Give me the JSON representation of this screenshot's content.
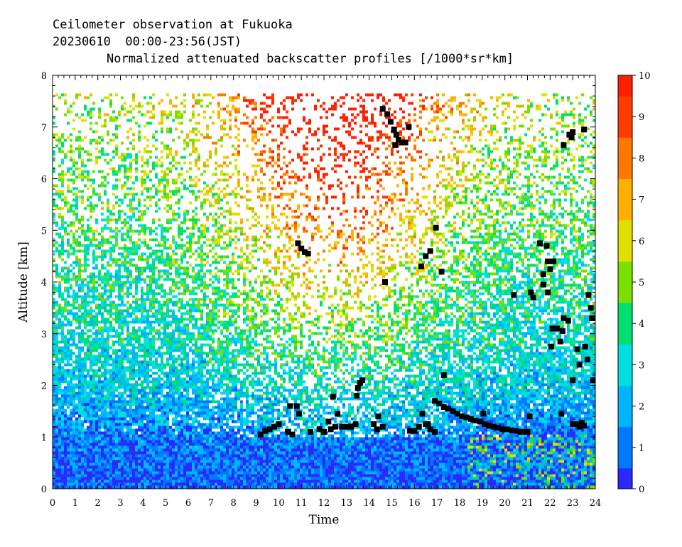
{
  "header": {
    "line1": "Ceilometer observation at Fukuoka",
    "line2": "20230610  00:00-23:56(JST)",
    "line3": "Normalized attenuated backscatter profiles [/1000*sr*km]"
  },
  "chart_data": {
    "type": "heatmap",
    "xlabel": "Time",
    "ylabel": "Altitude [km]",
    "xlim": [
      0,
      24
    ],
    "ylim": [
      0,
      8
    ],
    "x_ticks": [
      0,
      1,
      2,
      3,
      4,
      5,
      6,
      7,
      8,
      9,
      10,
      11,
      12,
      13,
      14,
      15,
      16,
      17,
      18,
      19,
      20,
      21,
      22,
      23,
      24
    ],
    "y_ticks": [
      0,
      1,
      2,
      3,
      4,
      5,
      6,
      7,
      8
    ],
    "colorbar": {
      "range": [
        0,
        10
      ],
      "ticks": [
        0,
        1,
        2,
        3,
        4,
        5,
        6,
        7,
        8,
        9,
        10
      ],
      "colors": [
        "#2a2aff",
        "#0078ff",
        "#00b4ff",
        "#00e0e0",
        "#00e070",
        "#7ae000",
        "#e0e000",
        "#ffb000",
        "#ff7800",
        "#ff3c00",
        "#ff2000"
      ]
    },
    "data_top_km": 7.65,
    "cloud_base_points": [
      [
        9.2,
        1.05
      ],
      [
        9.4,
        1.12
      ],
      [
        9.6,
        1.15
      ],
      [
        9.8,
        1.2
      ],
      [
        10.0,
        1.25
      ],
      [
        10.4,
        1.1
      ],
      [
        10.6,
        1.05
      ],
      [
        10.5,
        1.6
      ],
      [
        10.8,
        1.6
      ],
      [
        10.9,
        1.45
      ],
      [
        10.85,
        4.75
      ],
      [
        11.0,
        4.65
      ],
      [
        11.15,
        4.58
      ],
      [
        11.3,
        4.55
      ],
      [
        11.4,
        1.1
      ],
      [
        11.8,
        1.15
      ],
      [
        12.0,
        1.1
      ],
      [
        12.2,
        1.3
      ],
      [
        12.3,
        1.15
      ],
      [
        12.5,
        1.2
      ],
      [
        12.4,
        1.78
      ],
      [
        12.6,
        1.45
      ],
      [
        12.8,
        1.2
      ],
      [
        13.0,
        1.2
      ],
      [
        13.2,
        1.2
      ],
      [
        13.4,
        1.25
      ],
      [
        13.5,
        1.95
      ],
      [
        13.6,
        2.05
      ],
      [
        13.7,
        2.1
      ],
      [
        13.45,
        1.8
      ],
      [
        14.2,
        1.25
      ],
      [
        14.35,
        1.15
      ],
      [
        14.6,
        1.2
      ],
      [
        14.4,
        1.4
      ],
      [
        14.7,
        4.0
      ],
      [
        14.6,
        7.35
      ],
      [
        14.8,
        7.25
      ],
      [
        14.95,
        7.1
      ],
      [
        15.1,
        6.95
      ],
      [
        15.2,
        6.85
      ],
      [
        15.3,
        6.75
      ],
      [
        15.15,
        6.65
      ],
      [
        15.45,
        6.7
      ],
      [
        15.6,
        6.7
      ],
      [
        15.75,
        7.0
      ],
      [
        15.8,
        1.12
      ],
      [
        16.0,
        1.12
      ],
      [
        16.2,
        1.2
      ],
      [
        16.35,
        1.45
      ],
      [
        16.5,
        1.25
      ],
      [
        16.7,
        1.15
      ],
      [
        16.9,
        1.1
      ],
      [
        16.6,
        1.25
      ],
      [
        16.3,
        4.3
      ],
      [
        16.5,
        4.5
      ],
      [
        16.7,
        4.6
      ],
      [
        16.95,
        5.05
      ],
      [
        17.2,
        4.2
      ],
      [
        17.3,
        2.2
      ],
      [
        16.9,
        1.7
      ],
      [
        17.1,
        1.65
      ],
      [
        17.3,
        1.58
      ],
      [
        17.5,
        1.55
      ],
      [
        17.7,
        1.5
      ],
      [
        17.9,
        1.45
      ],
      [
        18.1,
        1.4
      ],
      [
        18.3,
        1.38
      ],
      [
        18.5,
        1.35
      ],
      [
        18.7,
        1.32
      ],
      [
        18.9,
        1.3
      ],
      [
        19.1,
        1.25
      ],
      [
        19.3,
        1.22
      ],
      [
        19.5,
        1.2
      ],
      [
        19.7,
        1.18
      ],
      [
        19.9,
        1.15
      ],
      [
        20.1,
        1.15
      ],
      [
        20.3,
        1.13
      ],
      [
        20.5,
        1.12
      ],
      [
        20.7,
        1.1
      ],
      [
        20.9,
        1.1
      ],
      [
        21.0,
        1.1
      ],
      [
        19.05,
        1.45
      ],
      [
        20.4,
        3.75
      ],
      [
        21.1,
        1.4
      ],
      [
        21.15,
        3.8
      ],
      [
        21.25,
        3.7
      ],
      [
        21.55,
        4.75
      ],
      [
        21.7,
        4.15
      ],
      [
        21.85,
        4.7
      ],
      [
        21.9,
        4.4
      ],
      [
        22.0,
        4.25
      ],
      [
        22.15,
        4.4
      ],
      [
        21.9,
        3.8
      ],
      [
        21.7,
        3.95
      ],
      [
        22.05,
        2.75
      ],
      [
        22.1,
        3.1
      ],
      [
        22.3,
        3.1
      ],
      [
        22.45,
        2.85
      ],
      [
        22.6,
        3.3
      ],
      [
        22.8,
        3.25
      ],
      [
        22.5,
        1.45
      ],
      [
        22.55,
        3.05
      ],
      [
        22.6,
        6.65
      ],
      [
        22.85,
        6.85
      ],
      [
        23.0,
        6.9
      ],
      [
        22.95,
        6.8
      ],
      [
        23.5,
        6.95
      ],
      [
        23.0,
        2.1
      ],
      [
        23.2,
        2.7
      ],
      [
        23.3,
        2.4
      ],
      [
        23.55,
        2.75
      ],
      [
        23.65,
        2.5
      ],
      [
        23.7,
        3.75
      ],
      [
        23.8,
        3.5
      ],
      [
        23.85,
        3.3
      ],
      [
        23.9,
        2.1
      ],
      [
        23.0,
        1.25
      ],
      [
        23.2,
        1.25
      ],
      [
        23.4,
        1.28
      ],
      [
        23.5,
        1.22
      ],
      [
        23.3,
        1.2
      ]
    ]
  }
}
